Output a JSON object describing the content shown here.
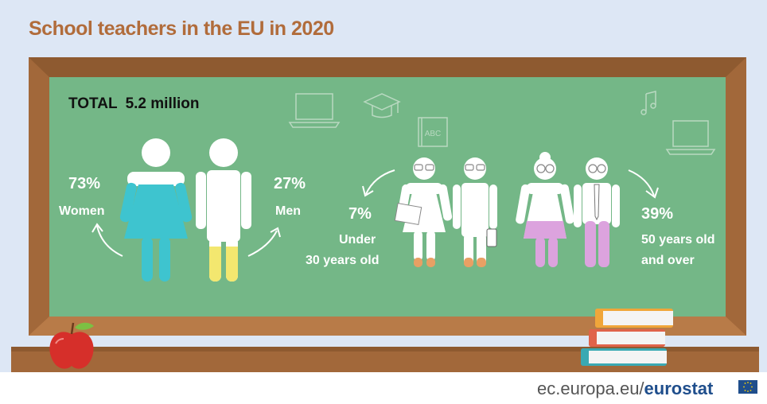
{
  "title": "School teachers in the EU in 2020",
  "total": {
    "label": "TOTAL",
    "value": "5.2 million"
  },
  "gender": {
    "women": {
      "percent": "73%",
      "label": "Women"
    },
    "men": {
      "percent": "27%",
      "label": "Men"
    }
  },
  "age": {
    "under30": {
      "percent": "7%",
      "line1": "Under",
      "line2": "30 years old"
    },
    "over50": {
      "percent": "39%",
      "line1": "50 years old",
      "line2": "and over"
    }
  },
  "chalk_doodles": {
    "book_text": "ABC"
  },
  "footer": {
    "domain": "ec.europa.eu/",
    "brand": "eurostat"
  },
  "colors": {
    "background": "#dde7f5",
    "board": "#74b787",
    "frame": "#a2683a",
    "title": "#b16c3b",
    "women": "#3ec4cf",
    "men": "#f3e76f",
    "young": "#e8a064",
    "older": "#dca3de"
  }
}
